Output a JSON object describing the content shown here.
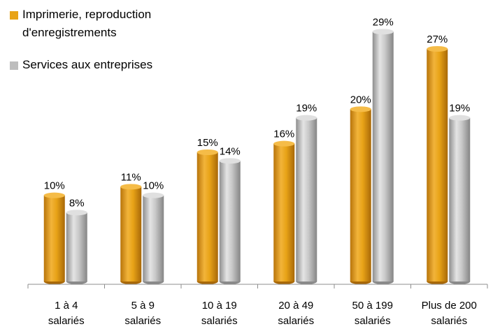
{
  "chart_data": {
    "type": "bar",
    "categories": [
      [
        "1 à 4",
        "salariés"
      ],
      [
        "5 à 9",
        "salariés"
      ],
      [
        "10 à 19",
        "salariés"
      ],
      [
        "20 à 49",
        "salariés"
      ],
      [
        "50 à 199",
        "salariés"
      ],
      [
        "Plus de 200",
        "salariés"
      ]
    ],
    "series": [
      {
        "name": "Imprimerie, reproduction d'enregistrements",
        "name_lines": [
          "Imprimerie, reproduction",
          "d'enregistrements"
        ],
        "values": [
          10,
          11,
          15,
          16,
          20,
          27
        ],
        "labels": [
          "10%",
          "11%",
          "15%",
          "16%",
          "20%",
          "27%"
        ],
        "color": "#E8A317"
      },
      {
        "name": "Services aux entreprises",
        "name_lines": [
          "Services aux entreprises"
        ],
        "values": [
          8,
          10,
          14,
          19,
          29,
          19
        ],
        "labels": [
          "8%",
          "10%",
          "14%",
          "19%",
          "29%",
          "19%"
        ],
        "color": "#BDBDBD"
      }
    ],
    "ylim": [
      0,
      30
    ],
    "unit": "%",
    "grid": false,
    "legend_position": "top-left",
    "style": "3d-cylinder"
  }
}
